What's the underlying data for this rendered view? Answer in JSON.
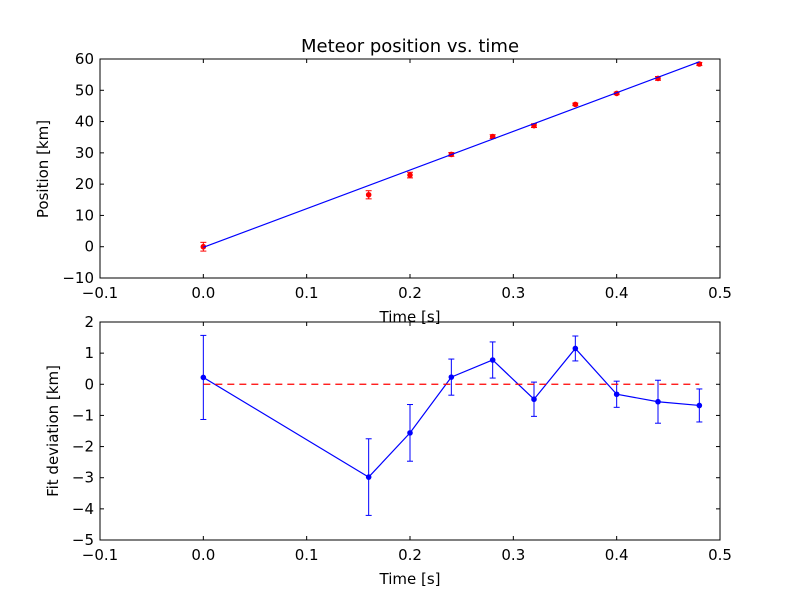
{
  "chart_data": [
    {
      "type": "scatter",
      "title": "Meteor position vs. time",
      "xlabel": "Time [s]",
      "ylabel": "Position [km]",
      "xlim": [
        -0.1,
        0.5
      ],
      "ylim": [
        -10,
        60
      ],
      "xticks": [
        -0.1,
        0,
        0.1,
        0.2,
        0.3,
        0.4,
        0.5
      ],
      "xtick_labels": [
        "−0.1",
        "0.0",
        "0.1",
        "0.2",
        "0.3",
        "0.4",
        "0.5"
      ],
      "yticks": [
        -10,
        0,
        10,
        20,
        30,
        40,
        50,
        60
      ],
      "ytick_labels": [
        "−10",
        "0",
        "10",
        "20",
        "30",
        "40",
        "50",
        "60"
      ],
      "grid": false,
      "series": [
        {
          "kind": "errorbar-points",
          "color": "#ff0000",
          "x": [
            0.0,
            0.16,
            0.2,
            0.24,
            0.28,
            0.32,
            0.36,
            0.4,
            0.44,
            0.48
          ],
          "y": [
            0.0,
            16.6,
            22.9,
            29.5,
            35.2,
            38.7,
            45.5,
            49.0,
            53.8,
            58.4
          ],
          "yerr": [
            1.4,
            1.3,
            0.9,
            0.6,
            0.6,
            0.6,
            0.4,
            0.4,
            0.6,
            0.5
          ]
        },
        {
          "kind": "line",
          "color": "#0000ff",
          "x": [
            0.0,
            0.48
          ],
          "y": [
            -0.2,
            59.1
          ]
        }
      ]
    },
    {
      "type": "line",
      "title": "",
      "xlabel": "Time [s]",
      "ylabel": "Fit deviation [km]",
      "xlim": [
        -0.1,
        0.5
      ],
      "ylim": [
        -5,
        2
      ],
      "xticks": [
        -0.1,
        0,
        0.1,
        0.2,
        0.3,
        0.4,
        0.5
      ],
      "xtick_labels": [
        "−0.1",
        "0.0",
        "0.1",
        "0.2",
        "0.3",
        "0.4",
        "0.5"
      ],
      "yticks": [
        -5,
        -4,
        -3,
        -2,
        -1,
        0,
        1,
        2
      ],
      "ytick_labels": [
        "−5",
        "−4",
        "−3",
        "−2",
        "−1",
        "0",
        "1",
        "2"
      ],
      "grid": false,
      "series": [
        {
          "kind": "errorbar-line",
          "color": "#0000ff",
          "x": [
            0.0,
            0.16,
            0.2,
            0.24,
            0.28,
            0.32,
            0.36,
            0.4,
            0.44,
            0.48
          ],
          "y": [
            0.22,
            -2.98,
            -1.56,
            0.23,
            0.78,
            -0.48,
            1.15,
            -0.32,
            -0.56,
            -0.68
          ],
          "yerr": [
            1.35,
            1.23,
            0.91,
            0.58,
            0.58,
            0.55,
            0.4,
            0.42,
            0.69,
            0.53
          ]
        },
        {
          "kind": "hline-dashed",
          "color": "#ff0000",
          "x": [
            0.0,
            0.48
          ],
          "y": [
            0,
            0
          ]
        }
      ]
    }
  ]
}
